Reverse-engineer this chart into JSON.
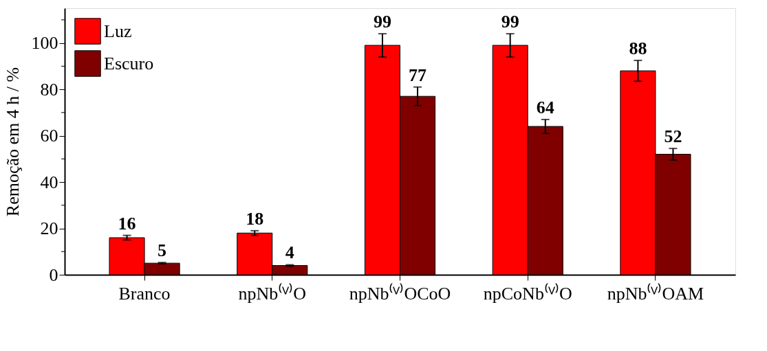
{
  "chart_data": {
    "type": "bar",
    "ylabel": "Remoção em 4 h / %",
    "categories": [
      "Branco",
      "npNb⁽ⱽ⁾O",
      "npNb⁽ⱽ⁾OCoO",
      "npCoNb⁽ⱽ⁾O",
      "npNb⁽ⱽ⁾OAM"
    ],
    "series": [
      {
        "name": "Luz",
        "color": "#ff0000",
        "values": [
          16,
          18,
          99,
          99,
          88
        ],
        "errors": [
          1,
          1,
          5,
          5,
          4.5
        ]
      },
      {
        "name": "Escuro",
        "color": "#800000",
        "values": [
          5,
          4,
          77,
          64,
          52
        ],
        "errors": [
          0.3,
          0.3,
          4,
          3,
          2.5
        ]
      }
    ],
    "ylim": [
      0,
      115
    ],
    "yticks": [
      0,
      {
        "value": 10,
        "label": null
      },
      20,
      {
        "value": 30,
        "label": null
      },
      40,
      {
        "value": 50,
        "label": null
      },
      60,
      {
        "value": 70,
        "label": null
      },
      80,
      {
        "value": 90,
        "label": null
      },
      100,
      {
        "value": 110,
        "label": null
      }
    ],
    "data_labels": true,
    "legend": "top left",
    "grid": false
  }
}
